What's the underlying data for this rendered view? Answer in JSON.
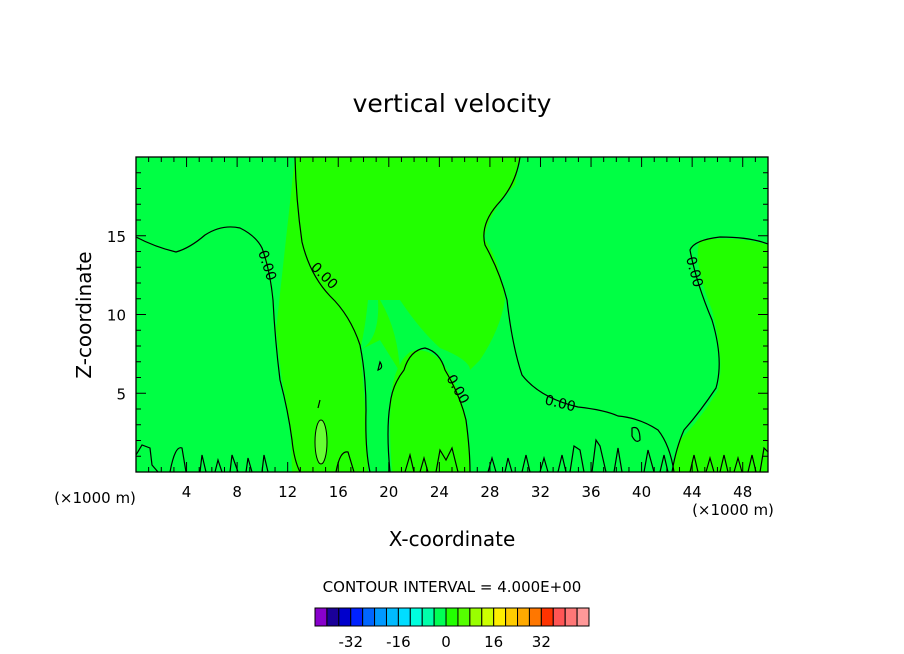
{
  "chart_data": {
    "type": "heatmap",
    "title": "vertical velocity",
    "xlabel": "X-coordinate",
    "ylabel": "Z-coordinate",
    "x_unit_note": "(×1000 m)",
    "z_unit_note": "(×1000 m)",
    "xlim": [
      0,
      50
    ],
    "ylim": [
      0,
      20
    ],
    "x_ticks": [
      4,
      8,
      12,
      16,
      20,
      24,
      28,
      32,
      36,
      40,
      44,
      48
    ],
    "z_ticks": [
      5,
      10,
      15
    ],
    "contour_interval_text": "CONTOUR INTERVAL = 4.000E+00",
    "contour_level_labels": [
      "0.00",
      "0.00",
      "0.00",
      "0.00",
      "0.00"
    ],
    "grid": false,
    "colorbar": {
      "tick_labels": [
        "-32",
        "-16",
        "0",
        "16",
        "32"
      ],
      "tick_values": [
        -32,
        -16,
        0,
        16,
        32
      ],
      "colors": [
        "#8800cc",
        "#1a0099",
        "#0000cc",
        "#0022ff",
        "#0066ff",
        "#0099ff",
        "#00bbff",
        "#00ddff",
        "#00ffdd",
        "#00ffaa",
        "#00ff55",
        "#22ff00",
        "#55ff00",
        "#99ff00",
        "#ccff00",
        "#ffee00",
        "#ffcc00",
        "#ffaa00",
        "#ff7700",
        "#ff3300",
        "#ff5555",
        "#ff7777",
        "#ff9999"
      ]
    }
  }
}
